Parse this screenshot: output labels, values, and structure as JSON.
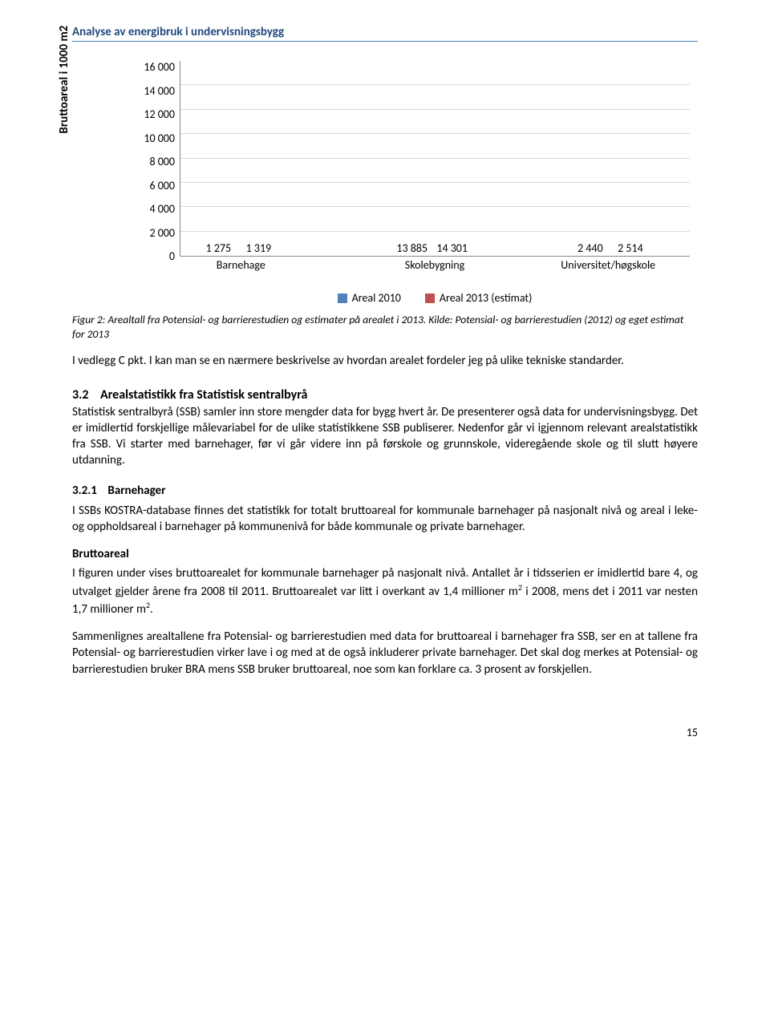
{
  "header": {
    "title": "Analyse av energibruk i undervisningsbygg"
  },
  "chart": {
    "type": "bar",
    "y_label": "Bruttoareal i 1000 m2",
    "y_ticks": [
      "16 000",
      "14 000",
      "12 000",
      "10 000",
      "8 000",
      "6 000",
      "4 000",
      "2 000",
      "0"
    ],
    "ymax": 16000,
    "grid_pct": [
      12.5,
      25,
      37.5,
      50,
      62.5,
      75,
      87.5
    ],
    "categories": [
      "Barnehage",
      "Skolebygning",
      "Universitet/høgskole"
    ],
    "cat_centers": [
      12,
      50,
      84
    ],
    "series": [
      {
        "label": "Areal 2010",
        "color": "#4f81bd"
      },
      {
        "label": "Areal 2013 (estimat)",
        "color": "#c0504d"
      }
    ],
    "groups": [
      {
        "left_pct": 4,
        "bars": [
          {
            "v": 1275,
            "label": "1 275",
            "color": "#4f81bd"
          },
          {
            "v": 1319,
            "label": "1 319",
            "color": "#c0504d"
          }
        ]
      },
      {
        "left_pct": 42,
        "bars": [
          {
            "v": 13885,
            "label": "13 885",
            "color": "#4f81bd"
          },
          {
            "v": 14301,
            "label": "14 301",
            "color": "#c0504d"
          }
        ]
      },
      {
        "left_pct": 77,
        "bars": [
          {
            "v": 2440,
            "label": "2 440",
            "color": "#4f81bd"
          },
          {
            "v": 2514,
            "label": "2 514",
            "color": "#c0504d"
          }
        ]
      }
    ]
  },
  "caption": "Figur 2: Arealtall fra Potensial- og barrierestudien og estimater på arealet i 2013. Kilde: Potensial- og barrierestudien (2012) og eget estimat for 2013",
  "para1": "I vedlegg C pkt. I kan man se en nærmere beskrivelse av hvordan arealet fordeler jeg på ulike tekniske standarder.",
  "sec32_num": "3.2",
  "sec32_title": "Arealstatistikk fra Statistisk sentralbyrå",
  "sec32_body": "Statistisk sentralbyrå (SSB) samler inn store mengder data for bygg hvert år. De presenterer også data for undervisningsbygg. Det er imidlertid forskjellige målevariabel for de ulike statistikkene SSB publiserer. Nedenfor går vi igjennom relevant arealstatistikk fra SSB. Vi starter med barnehager, før vi går videre inn på førskole og grunnskole, videregående skole og til slutt høyere utdanning.",
  "sec321_num": "3.2.1",
  "sec321_title": "Barnehager",
  "sec321_p1": "I SSBs KOSTRA-database finnes det statistikk for totalt bruttoareal for kommunale barnehager på nasjonalt nivå og areal i leke- og oppholdsareal i barnehager på kommunenivå for både kommunale og private barnehager.",
  "brutto_heading": "Bruttoareal",
  "brutto_p1a": "I figuren under vises bruttoarealet for kommunale barnehager på nasjonalt nivå. Antallet år i tidsserien er imidlertid bare 4, og utvalget gjelder årene fra 2008 til 2011. Bruttoarealet var litt i overkant av 1,4 millioner m",
  "brutto_p1b": " i 2008, mens det i 2011 var nesten 1,7 millioner m",
  "brutto_p1c": ".",
  "brutto_p2": "Sammenlignes arealtallene fra Potensial- og barrierestudien med data for bruttoareal i barnehager fra SSB, ser en at tallene fra Potensial- og barrierestudien virker lave i og med at de også inkluderer private barnehager. Det skal dog merkes at Potensial- og barrierestudien bruker BRA mens SSB bruker bruttoareal, noe som kan forklare ca. 3 prosent av forskjellen.",
  "page_number": "15",
  "sup2": "2"
}
